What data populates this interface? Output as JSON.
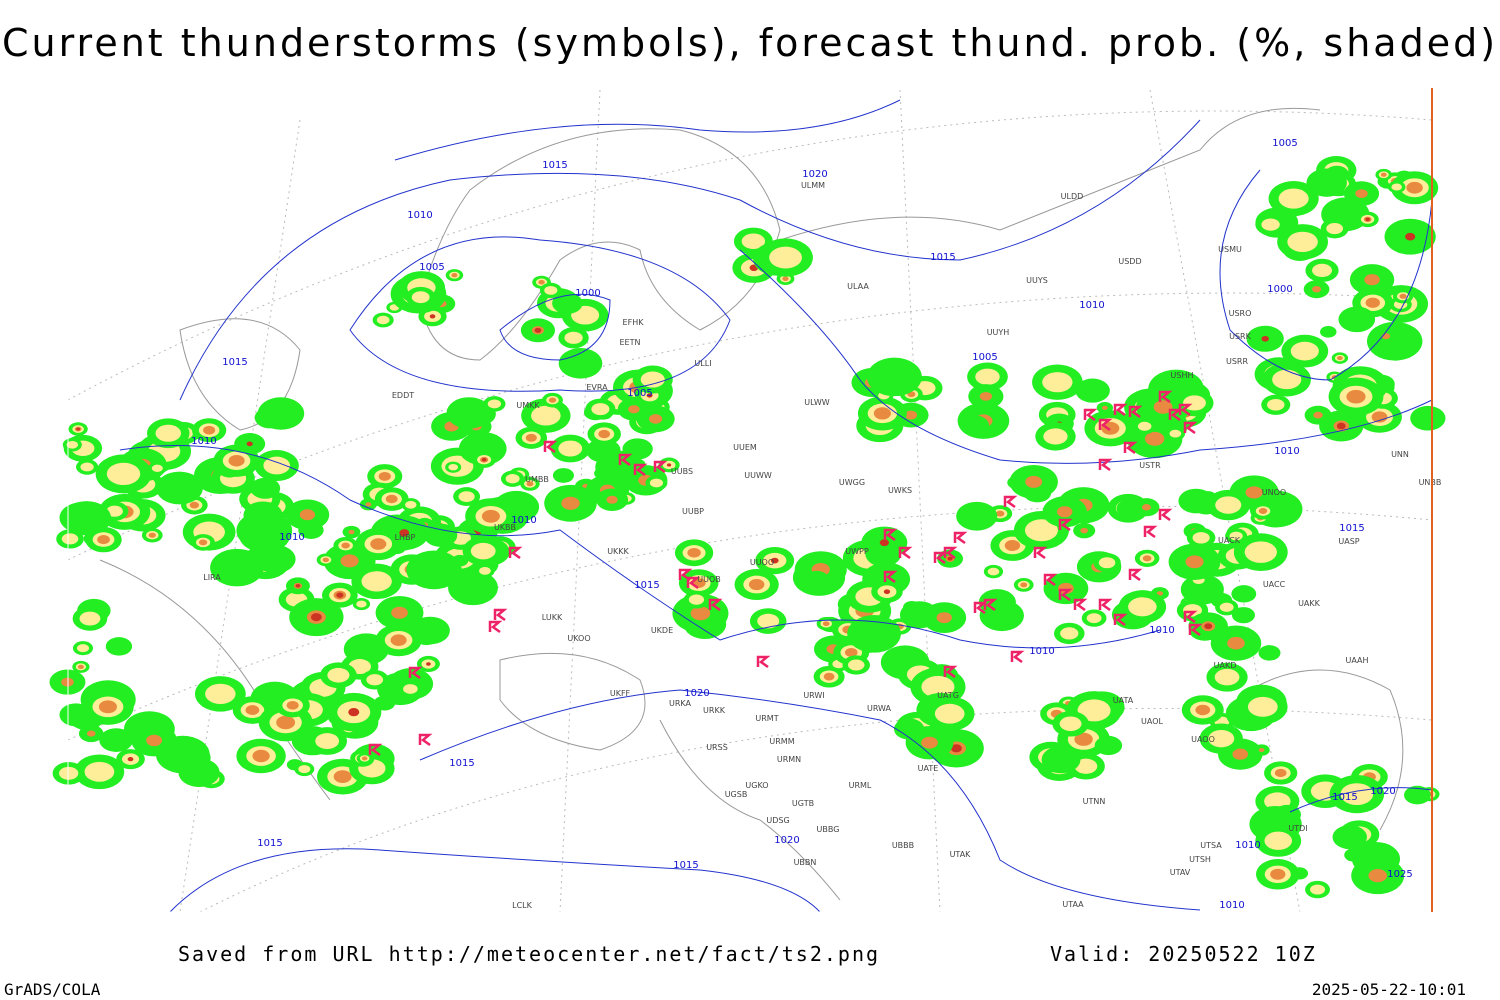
{
  "title": "Current thunderstorms (symbols), forecast thund. prob. (%, shaded)",
  "footer": {
    "source": "Saved from URL http://meteocenter.net/fact/ts2.png",
    "valid": "Valid: 20250522 10Z",
    "software": "GrADS/COLA",
    "timestamp": "2025-05-22-10:01"
  },
  "isobar_labels": [
    "1015",
    "1020",
    "1010",
    "1005",
    "1000",
    "1015",
    "1015",
    "1010",
    "1005",
    "1005",
    "1010",
    "1010",
    "1010",
    "1015",
    "1010",
    "1010",
    "1020",
    "1015",
    "1015",
    "1015",
    "1020",
    "1005",
    "1000",
    "1010",
    "1015",
    "1015",
    "1020",
    "1025",
    "1010",
    "1010"
  ],
  "stations": [
    "ULMM",
    "ULDD",
    "USDD",
    "USMU",
    "ULAA",
    "UUYS",
    "USRO",
    "USRK",
    "UUYH",
    "USRR",
    "USHH",
    "ULLI",
    "EFHK",
    "EETN",
    "EVRA",
    "UMKK",
    "EDDT",
    "UUEM",
    "ULWW",
    "UUWW",
    "UWGG",
    "UWKS",
    "UUBS",
    "UMBB",
    "UUBP",
    "UKBB",
    "UKKK",
    "UUOO",
    "UWPP",
    "UUOB",
    "LHBP",
    "LIRA",
    "LUKK",
    "UKOO",
    "UKDE",
    "UKFF",
    "URKA",
    "URKK",
    "URMT",
    "URSS",
    "URMM",
    "URMN",
    "UGKO",
    "UGSB",
    "UGTB",
    "UDSG",
    "UBBG",
    "UBBN",
    "URML",
    "URWI",
    "URWA",
    "UATG",
    "UATE",
    "UBBB",
    "UTAK",
    "UTAA",
    "UTNN",
    "UTSA",
    "UTAV",
    "UTSH",
    "UATA",
    "UAOL",
    "UAOO",
    "UAKD",
    "UAAH",
    "UACC",
    "UAKK",
    "UASP",
    "UNOO",
    "UNBB",
    "UNN",
    "USTR",
    "UACK",
    "UTDI",
    "LCLK"
  ]
}
